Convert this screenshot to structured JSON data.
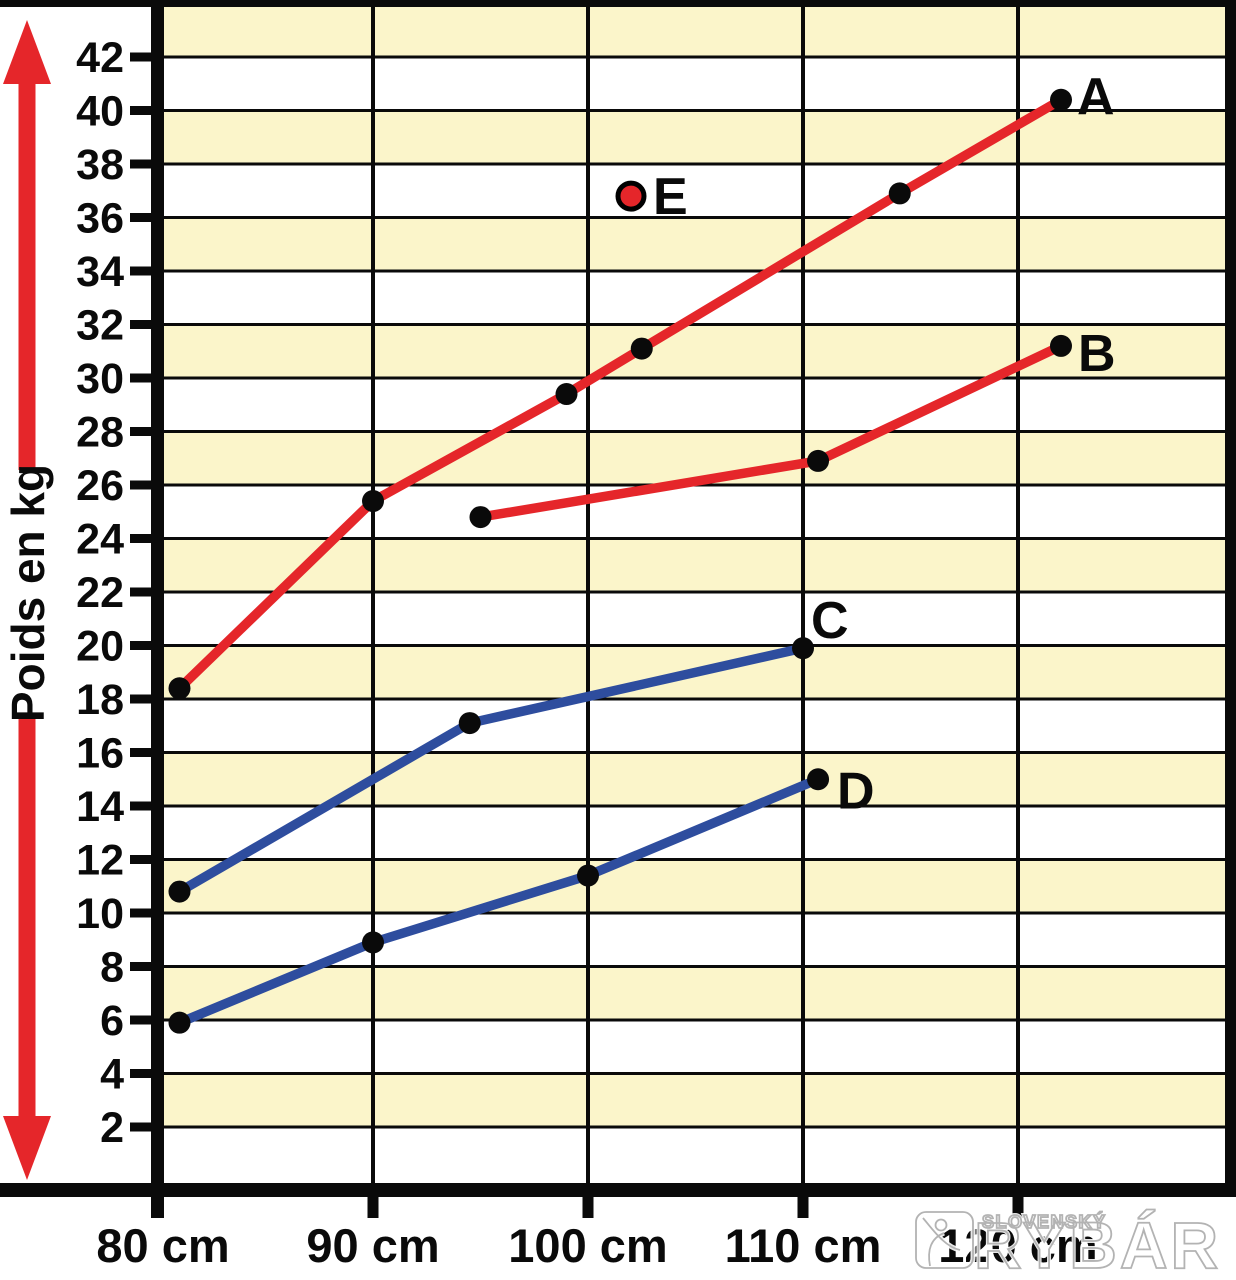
{
  "chart_data": {
    "type": "line",
    "title": "",
    "xlabel": "",
    "ylabel": "Poids en kg",
    "x_tick_labels": [
      "80 cm",
      "90 cm",
      "100 cm",
      "110 cm",
      "120 cm"
    ],
    "x_tick_values": [
      80,
      90,
      100,
      110,
      120
    ],
    "y_tick_values": [
      2,
      4,
      6,
      8,
      10,
      12,
      14,
      16,
      18,
      20,
      22,
      24,
      26,
      28,
      30,
      32,
      34,
      36,
      38,
      40,
      42
    ],
    "xlim": [
      80,
      129.6
    ],
    "ylim": [
      0,
      43.9
    ],
    "grid": {
      "horizontal_every_kg": 2,
      "vertical_every_cm": 10,
      "band_fill_alternate": [
        "#FBF5CA",
        "#FFFFFF"
      ]
    },
    "legend_position": "labels at line endpoints",
    "series": [
      {
        "name": "A",
        "color": "#E5262A",
        "points": [
          [
            81,
            18.4
          ],
          [
            90,
            25.4
          ],
          [
            99,
            29.4
          ],
          [
            102.5,
            31.1
          ],
          [
            114.5,
            36.9
          ],
          [
            122,
            40.4
          ]
        ]
      },
      {
        "name": "B",
        "color": "#E5262A",
        "points": [
          [
            95,
            24.8
          ],
          [
            110.7,
            26.9
          ],
          [
            122,
            31.2
          ]
        ]
      },
      {
        "name": "C",
        "color": "#2E4D9E",
        "points": [
          [
            81,
            10.8
          ],
          [
            94.5,
            17.1
          ],
          [
            110,
            19.9
          ]
        ]
      },
      {
        "name": "D",
        "color": "#2E4D9E",
        "points": [
          [
            81,
            5.9
          ],
          [
            90,
            8.9
          ],
          [
            100,
            11.4
          ],
          [
            110.7,
            15.0
          ]
        ]
      }
    ],
    "isolated_point": {
      "name": "E",
      "x": 102,
      "y": 36.8,
      "fill": "#E5262A",
      "outline": "#000000"
    }
  },
  "axis_arrow": {
    "direction": "double-vertical",
    "color": "#E5262A"
  },
  "watermark": {
    "small_text": "SLOVENSKÝ",
    "big_text": "RYBÁR",
    "logo": "fisherman-logo"
  },
  "colors": {
    "background": "#FFFFFF",
    "band_yellow": "#FBF5CA",
    "grid_black": "#0A0A0A",
    "red": "#E5262A",
    "blue": "#2E4D9E",
    "watermark_gray": "#B3B3B3"
  }
}
